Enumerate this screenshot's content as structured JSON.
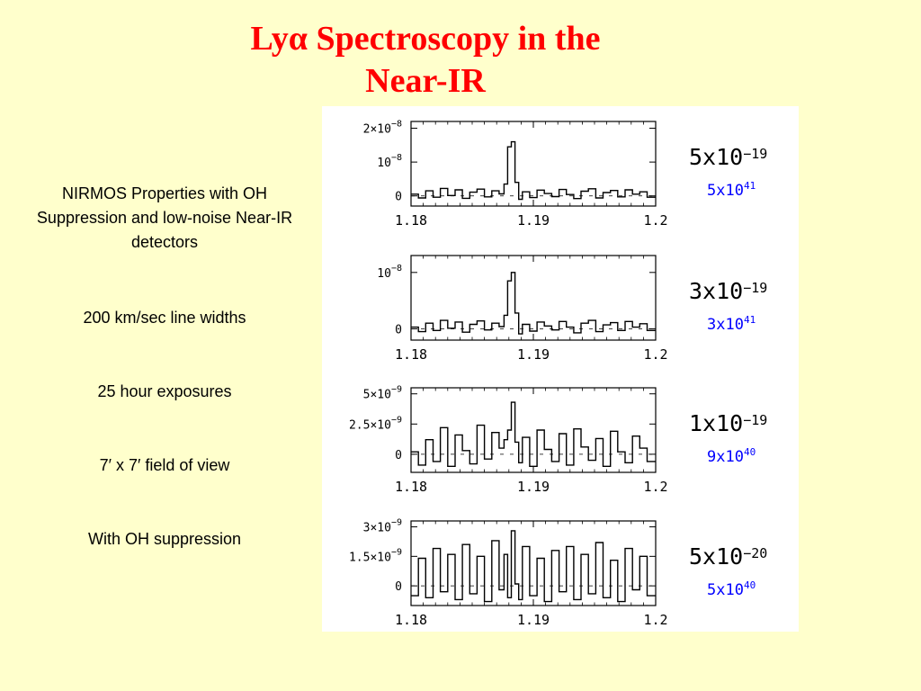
{
  "slide": {
    "title_line1": "Lyα Spectroscopy in the",
    "title_line2": "Near-IR",
    "bullets": [
      "NIRMOS Properties with OH Suppression and low-noise Near-IR detectors",
      "200 km/sec line widths",
      "25 hour exposures",
      "7′ x 7′  field of view",
      "With OH suppression"
    ]
  },
  "colors": {
    "title": "#ff0000",
    "background": "#ffffcc",
    "luminosity_label": "#0000ff",
    "trace": "#000000"
  },
  "chart_data": [
    {
      "type": "line",
      "xlim": [
        1.18,
        1.2
      ],
      "xticks": [
        "1.18",
        "1.19",
        "1.2"
      ],
      "ylim": [
        -3e-09,
        2.2e-08
      ],
      "yticks": [
        {
          "value": 2e-08,
          "mant": "2×10",
          "exp": "−8"
        },
        {
          "value": 1e-08,
          "mant": "10",
          "exp": "−8"
        },
        {
          "value": 0,
          "mant": "0",
          "exp": ""
        }
      ],
      "flux_label": {
        "mant": "5x10",
        "exp": "−19"
      },
      "luminosity_label": {
        "mant": "5x10",
        "exp": "41"
      },
      "series": [
        {
          "x": [
            1.18,
            1.1806,
            1.1812,
            1.1818,
            1.1824,
            1.183,
            1.1836,
            1.1842,
            1.1848,
            1.1854,
            1.186,
            1.1866,
            1.1872,
            1.1876,
            1.1879,
            1.1882,
            1.1885,
            1.1888,
            1.1891,
            1.1897,
            1.1903,
            1.1909,
            1.1915,
            1.1921,
            1.1927,
            1.1933,
            1.1939,
            1.1945,
            1.1951,
            1.1957,
            1.1963,
            1.1969,
            1.1975,
            1.1981,
            1.1987,
            1.1993,
            1.2
          ],
          "values": [
            5e-10,
            -6e-10,
            1.5e-09,
            -4e-10,
            2.2e-09,
            1e-10,
            1.8e-09,
            -7e-10,
            1.1e-09,
            2e-09,
            -3e-10,
            1.5e-09,
            6e-10,
            3.5e-09,
            1.45e-08,
            1.6e-08,
            4e-09,
            -1e-09,
            1.2e-09,
            -5e-10,
            1.7e-09,
            7e-10,
            -2e-10,
            1.9e-09,
            4e-10,
            -8e-10,
            1.4e-09,
            2.1e-09,
            -6e-10,
            1e-09,
            1.6e-09,
            -3e-10,
            1.8e-09,
            5e-10,
            1.2e-09,
            -4e-10,
            1e-09
          ]
        }
      ]
    },
    {
      "type": "line",
      "xlim": [
        1.18,
        1.2
      ],
      "xticks": [
        "1.18",
        "1.19",
        "1.2"
      ],
      "ylim": [
        -2e-09,
        1.3e-08
      ],
      "yticks": [
        {
          "value": 1e-08,
          "mant": "10",
          "exp": "−8"
        },
        {
          "value": 0,
          "mant": "0",
          "exp": ""
        }
      ],
      "flux_label": {
        "mant": "3x10",
        "exp": "−19"
      },
      "luminosity_label": {
        "mant": "3x10",
        "exp": "41"
      },
      "series": [
        {
          "x": [
            1.18,
            1.1806,
            1.1812,
            1.1818,
            1.1824,
            1.183,
            1.1836,
            1.1842,
            1.1848,
            1.1854,
            1.186,
            1.1866,
            1.1872,
            1.1876,
            1.1879,
            1.1882,
            1.1885,
            1.1888,
            1.1891,
            1.1897,
            1.1903,
            1.1909,
            1.1915,
            1.1921,
            1.1927,
            1.1933,
            1.1939,
            1.1945,
            1.1951,
            1.1957,
            1.1963,
            1.1969,
            1.1975,
            1.1981,
            1.1987,
            1.1993,
            1.2
          ],
          "values": [
            3e-10,
            -5e-10,
            1e-09,
            -3e-10,
            1.5e-09,
            1e-10,
            1.2e-09,
            -6e-10,
            8e-10,
            1.4e-09,
            -2e-10,
            1e-09,
            4e-10,
            2.4e-09,
            8.5e-09,
            1e-08,
            2.8e-09,
            -9e-10,
            8e-10,
            -4e-10,
            1.2e-09,
            5e-10,
            -2e-10,
            1.3e-09,
            3e-10,
            -7e-10,
            1e-09,
            1.5e-09,
            -5e-10,
            7e-10,
            1.1e-09,
            -3e-10,
            1.3e-09,
            3e-10,
            9e-10,
            -3e-10,
            7e-10
          ]
        }
      ]
    },
    {
      "type": "line",
      "xlim": [
        1.18,
        1.2
      ],
      "xticks": [
        "1.18",
        "1.19",
        "1.2"
      ],
      "ylim": [
        -1.5e-09,
        5.5e-09
      ],
      "yticks": [
        {
          "value": 5e-09,
          "mant": "5×10",
          "exp": "−9"
        },
        {
          "value": 2.5e-09,
          "mant": "2.5×10",
          "exp": "−9"
        },
        {
          "value": 0,
          "mant": "0",
          "exp": ""
        }
      ],
      "flux_label": {
        "mant": "1x10",
        "exp": "−19"
      },
      "luminosity_label": {
        "mant": "9x10",
        "exp": "40"
      },
      "series": [
        {
          "x": [
            1.18,
            1.1806,
            1.1812,
            1.1818,
            1.1824,
            1.183,
            1.1836,
            1.1842,
            1.1848,
            1.1854,
            1.186,
            1.1866,
            1.1872,
            1.1876,
            1.1879,
            1.1882,
            1.1885,
            1.1888,
            1.1891,
            1.1897,
            1.1903,
            1.1909,
            1.1915,
            1.1921,
            1.1927,
            1.1933,
            1.1939,
            1.1945,
            1.1951,
            1.1957,
            1.1963,
            1.1969,
            1.1975,
            1.1981,
            1.1987,
            1.1993,
            1.2
          ],
          "values": [
            2e-10,
            -9e-10,
            1.2e-09,
            -6e-10,
            2.2e-09,
            -1e-09,
            1.6e-09,
            3e-10,
            -8e-10,
            2.4e-09,
            -4e-10,
            1.8e-09,
            5e-10,
            1.2e-09,
            2e-09,
            4.3e-09,
            1e-09,
            -7e-10,
            1.4e-09,
            -1e-09,
            2e-09,
            4e-10,
            -6e-10,
            1.7e-09,
            -9e-10,
            2.1e-09,
            6e-10,
            -5e-10,
            1.3e-09,
            -1e-09,
            1.9e-09,
            2e-10,
            -7e-10,
            1.5e-09,
            5e-10,
            -6e-10,
            1e-09
          ]
        }
      ]
    },
    {
      "type": "line",
      "xlim": [
        1.18,
        1.2
      ],
      "xticks": [
        "1.18",
        "1.19",
        "1.2"
      ],
      "ylim": [
        -1e-09,
        3.3e-09
      ],
      "yticks": [
        {
          "value": 3e-09,
          "mant": "3×10",
          "exp": "−9"
        },
        {
          "value": 1.5e-09,
          "mant": "1.5×10",
          "exp": "−9"
        },
        {
          "value": 0,
          "mant": "0",
          "exp": ""
        }
      ],
      "flux_label": {
        "mant": "5x10",
        "exp": "−20"
      },
      "luminosity_label": {
        "mant": "5x10",
        "exp": "40"
      },
      "series": [
        {
          "x": [
            1.18,
            1.1806,
            1.1812,
            1.1818,
            1.1824,
            1.183,
            1.1836,
            1.1842,
            1.1848,
            1.1854,
            1.186,
            1.1866,
            1.1872,
            1.1876,
            1.1879,
            1.1882,
            1.1885,
            1.1888,
            1.1891,
            1.1897,
            1.1903,
            1.1909,
            1.1915,
            1.1921,
            1.1927,
            1.1933,
            1.1939,
            1.1945,
            1.1951,
            1.1957,
            1.1963,
            1.1969,
            1.1975,
            1.1981,
            1.1987,
            1.1993,
            1.2
          ],
          "values": [
            -5e-10,
            1.4e-09,
            -6e-10,
            1.9e-09,
            -3e-10,
            1.6e-09,
            -7e-10,
            2.1e-09,
            -4e-10,
            1.5e-09,
            -8e-10,
            2.3e-09,
            -2e-10,
            1.6e-09,
            -6e-10,
            2.8e-09,
            1e-10,
            -7e-10,
            2e-09,
            -5e-10,
            1.4e-09,
            -8e-10,
            1.8e-09,
            -3e-10,
            2e-09,
            -7e-10,
            1.6e-09,
            -4e-10,
            2.2e-09,
            -6e-10,
            1.3e-09,
            -8e-10,
            1.9e-09,
            -2e-10,
            1.5e-09,
            -5e-10,
            1.2e-09
          ]
        }
      ]
    }
  ]
}
